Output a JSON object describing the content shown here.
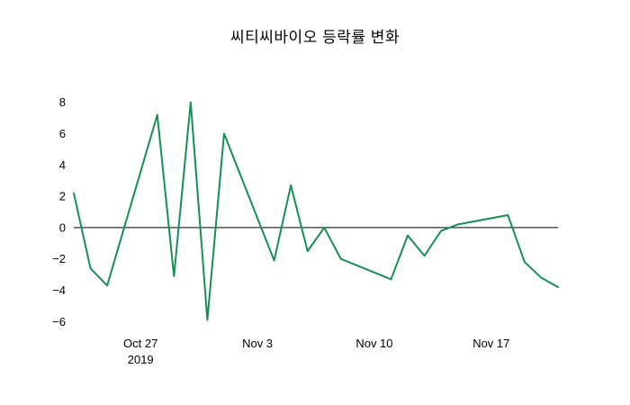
{
  "page": {
    "background": "#ffffff",
    "text_color": "#000000"
  },
  "chart_data": {
    "type": "line",
    "title": "씨티씨바이오 등락률 변화",
    "xlabel": "",
    "ylabel": "",
    "grid": false,
    "legend": false,
    "zero_line": true,
    "zero_line_color": "#000000",
    "ylim": [
      -6.5,
      8.5
    ],
    "yticks": [
      8,
      6,
      4,
      2,
      0,
      -2,
      -4,
      -6
    ],
    "xticks": [
      {
        "date": "2019-10-27",
        "label": "Oct 27",
        "sublabel": "2019"
      },
      {
        "date": "2019-11-03",
        "label": "Nov 3",
        "sublabel": ""
      },
      {
        "date": "2019-11-10",
        "label": "Nov 10",
        "sublabel": ""
      },
      {
        "date": "2019-11-17",
        "label": "Nov 17",
        "sublabel": ""
      }
    ],
    "series": [
      {
        "name": "등락률",
        "color": "#149150",
        "x": [
          "2019-10-23",
          "2019-10-24",
          "2019-10-25",
          "2019-10-28",
          "2019-10-29",
          "2019-10-30",
          "2019-10-31",
          "2019-11-01",
          "2019-11-04",
          "2019-11-05",
          "2019-11-06",
          "2019-11-07",
          "2019-11-08",
          "2019-11-11",
          "2019-11-12",
          "2019-11-13",
          "2019-11-14",
          "2019-11-15",
          "2019-11-18",
          "2019-11-19",
          "2019-11-20",
          "2019-11-21"
        ],
        "values": [
          2.2,
          -2.6,
          -3.7,
          7.2,
          -3.1,
          8.0,
          -5.9,
          6.0,
          -2.1,
          2.7,
          -1.5,
          0.0,
          -2.0,
          -3.3,
          -0.5,
          -1.8,
          -0.2,
          0.2,
          0.8,
          -2.2,
          -3.2,
          -3.8
        ]
      }
    ]
  }
}
